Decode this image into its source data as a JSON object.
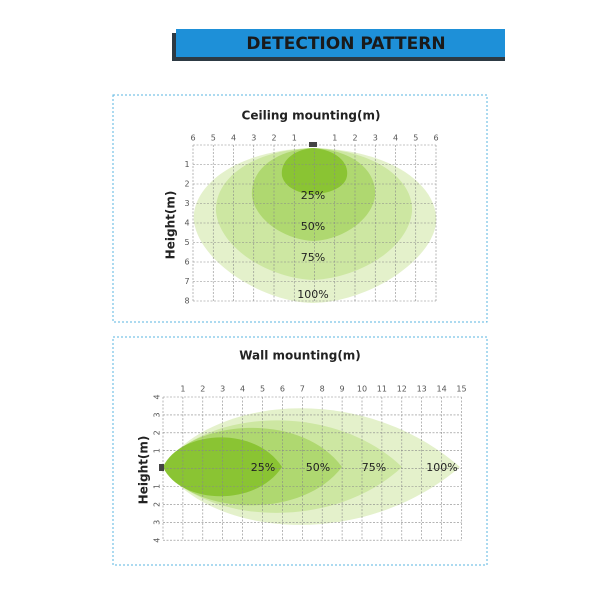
{
  "header": {
    "title": "DETECTION PATTERN"
  },
  "ceiling": {
    "title": "Ceiling mounting(m)",
    "y_label": "Height(m)",
    "x_ticks": [
      "6",
      "5",
      "4",
      "3",
      "2",
      "1",
      "1",
      "2",
      "3",
      "4",
      "5",
      "6"
    ],
    "y_ticks": [
      "1",
      "2",
      "3",
      "4",
      "5",
      "6",
      "7",
      "8"
    ],
    "zones": [
      "25%",
      "50%",
      "75%",
      "100%"
    ]
  },
  "wall": {
    "title": "Wall mounting(m)",
    "y_label": "Height(m)",
    "x_ticks": [
      "1",
      "2",
      "3",
      "4",
      "5",
      "6",
      "7",
      "8",
      "9",
      "10",
      "11",
      "12",
      "13",
      "14",
      "15"
    ],
    "y_ticks": [
      "4",
      "3",
      "2",
      "1",
      "1",
      "2",
      "3",
      "4"
    ],
    "zones": [
      "25%",
      "50%",
      "75%",
      "100%"
    ]
  }
}
